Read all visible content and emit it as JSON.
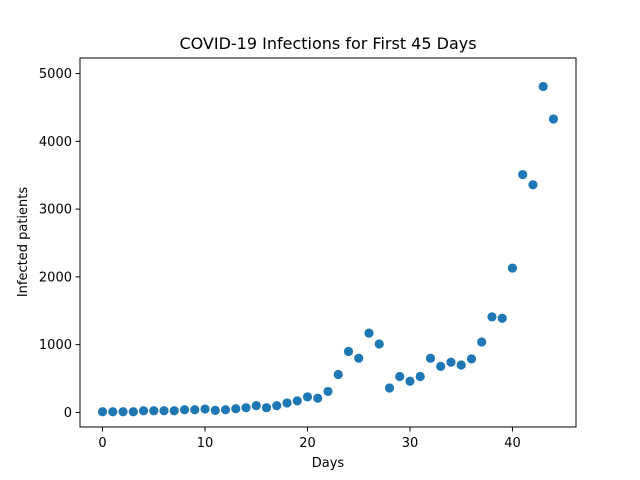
{
  "chart_data": {
    "type": "scatter",
    "title": "COVID-19 Infections for First 45 Days",
    "xlabel": "Days",
    "ylabel": "Infected patients",
    "xlim": [
      -2.2,
      46.2
    ],
    "ylim": [
      -215,
      5230
    ],
    "xticks": [
      0,
      10,
      20,
      30,
      40
    ],
    "yticks": [
      0,
      1000,
      2000,
      3000,
      4000,
      5000
    ],
    "grid": false,
    "marker_color": "#1f77b4",
    "x": [
      0,
      1,
      2,
      3,
      4,
      5,
      6,
      7,
      8,
      9,
      10,
      11,
      12,
      13,
      14,
      15,
      16,
      17,
      18,
      19,
      20,
      21,
      22,
      23,
      24,
      25,
      26,
      27,
      28,
      29,
      30,
      31,
      32,
      33,
      34,
      35,
      36,
      37,
      38,
      39,
      40,
      41,
      42,
      43,
      44
    ],
    "y": [
      10,
      10,
      10,
      10,
      25,
      25,
      25,
      25,
      40,
      40,
      50,
      30,
      40,
      55,
      70,
      100,
      70,
      100,
      140,
      170,
      230,
      210,
      310,
      560,
      900,
      800,
      1170,
      1010,
      360,
      530,
      460,
      530,
      800,
      680,
      740,
      700,
      790,
      1040,
      1410,
      1390,
      2130,
      3510,
      3360,
      4810,
      4330
    ]
  }
}
